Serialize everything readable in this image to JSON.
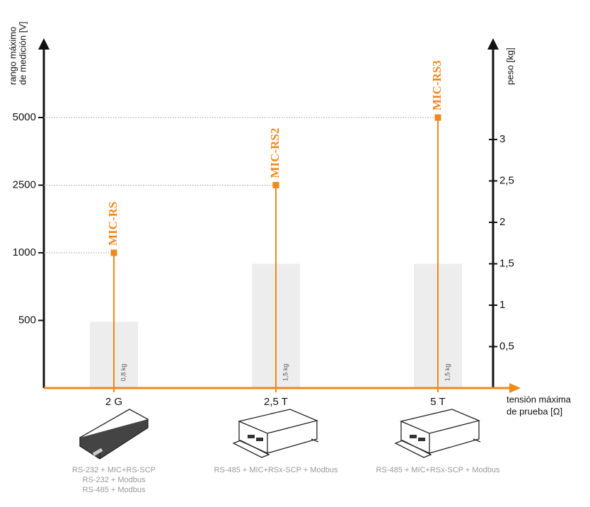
{
  "chart_data": {
    "type": "lollipop",
    "categories": [
      "2 G",
      "2,5 T",
      "5 T"
    ],
    "values": [
      1000,
      2500,
      5000
    ],
    "point_labels": [
      "MIC-RS",
      "MIC-RS2",
      "MIC-RS3"
    ],
    "color": "#f0881a",
    "ylim": [
      0,
      5000
    ],
    "yticks": [
      500,
      1000,
      2500,
      5000
    ],
    "yscale": "stepwise",
    "weights": [
      0.8,
      1.5,
      1.5
    ],
    "weight_labels": [
      "0,8 kg",
      "1,5 kg",
      "1,5 kg"
    ],
    "weight_color": "#ededed",
    "y2lim": [
      0,
      3
    ],
    "y2ticks": [
      {
        "value": 0.5,
        "label": "0,5"
      },
      1,
      {
        "value": 1.5,
        "label": "1,5"
      },
      2,
      {
        "value": 2.5,
        "label": "2,5"
      },
      3
    ],
    "y_label": [
      "rango máximo",
      "de medición [V]"
    ],
    "y2_label": "peso [kg]",
    "x_label": [
      "tensión máxima",
      "de prueba [Ω]"
    ],
    "descriptions": [
      [
        "RS-232 + MIC+RS-SCP",
        "RS-232 + Modbus",
        "RS-485 + Modbus"
      ],
      [
        "RS-485 + MIC+RSx-SCP + Modbus"
      ],
      [
        "RS-485 + MIC+RSx-SCP + Modbus"
      ]
    ],
    "grid": "dotted"
  }
}
